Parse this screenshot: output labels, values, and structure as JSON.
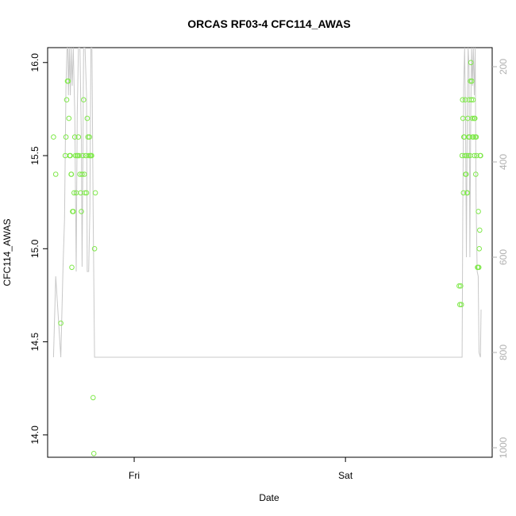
{
  "chart_data": {
    "type": "scatter",
    "title": "ORCAS RF03-4 CFC114_AWAS",
    "xlabel": "Date",
    "ylabel": "CFC114_AWAS",
    "xlim": [
      "2016-07-21T14:10",
      "2016-07-23T16:40"
    ],
    "ylim": [
      13.88,
      16.08
    ],
    "x_ticks": [
      {
        "value": "2016-07-22T00:00",
        "label": "Fri"
      },
      {
        "value": "2016-07-23T00:00",
        "label": "Sat"
      }
    ],
    "y_ticks": [
      14.0,
      14.5,
      15.0,
      15.5,
      16.0
    ],
    "y_tick_labels": [
      "14.0",
      "14.5",
      "15.0",
      "15.5",
      "16.0"
    ],
    "y2_lim": [
      1020,
      160
    ],
    "y2_ticks": [
      200,
      400,
      600,
      800,
      1000
    ],
    "y2_tick_labels": [
      "200",
      "400",
      "600",
      "800",
      "1000"
    ],
    "grid": false,
    "colors": {
      "points": "#7fe84a",
      "line": "#c8c8c8",
      "axis": "#000000",
      "right_axis": "#b0b0b0"
    },
    "series": [
      {
        "kind": "points",
        "axis": "left",
        "points": [
          [
            "2016-07-21T14:50",
            15.6
          ],
          [
            "2016-07-21T15:05",
            15.4
          ],
          [
            "2016-07-21T15:40",
            14.6
          ],
          [
            "2016-07-21T16:10",
            15.5
          ],
          [
            "2016-07-21T16:15",
            15.6
          ],
          [
            "2016-07-21T16:20",
            15.8
          ],
          [
            "2016-07-21T16:25",
            15.9
          ],
          [
            "2016-07-21T16:30",
            15.9
          ],
          [
            "2016-07-21T16:35",
            15.7
          ],
          [
            "2016-07-21T16:40",
            15.5
          ],
          [
            "2016-07-21T16:45",
            15.5
          ],
          [
            "2016-07-21T16:50",
            15.4
          ],
          [
            "2016-07-21T16:52",
            15.4
          ],
          [
            "2016-07-21T16:55",
            14.9
          ],
          [
            "2016-07-21T17:00",
            15.2
          ],
          [
            "2016-07-21T17:05",
            15.2
          ],
          [
            "2016-07-21T17:10",
            15.3
          ],
          [
            "2016-07-21T17:15",
            15.6
          ],
          [
            "2016-07-21T17:20",
            15.5
          ],
          [
            "2016-07-21T17:25",
            15.3
          ],
          [
            "2016-07-21T17:30",
            15.5
          ],
          [
            "2016-07-21T17:35",
            15.5
          ],
          [
            "2016-07-21T17:40",
            15.6
          ],
          [
            "2016-07-21T17:45",
            15.5
          ],
          [
            "2016-07-21T17:50",
            15.4
          ],
          [
            "2016-07-21T17:55",
            15.3
          ],
          [
            "2016-07-21T18:00",
            15.2
          ],
          [
            "2016-07-21T18:05",
            15.4
          ],
          [
            "2016-07-21T18:10",
            15.5
          ],
          [
            "2016-07-21T18:15",
            15.8
          ],
          [
            "2016-07-21T18:20",
            15.4
          ],
          [
            "2016-07-21T18:25",
            15.3
          ],
          [
            "2016-07-21T18:30",
            15.5
          ],
          [
            "2016-07-21T18:35",
            15.3
          ],
          [
            "2016-07-21T18:40",
            15.7
          ],
          [
            "2016-07-21T18:45",
            15.6
          ],
          [
            "2016-07-21T18:50",
            15.5
          ],
          [
            "2016-07-21T18:55",
            15.6
          ],
          [
            "2016-07-21T19:00",
            15.5
          ],
          [
            "2016-07-21T19:05",
            15.5
          ],
          [
            "2016-07-21T19:10",
            15.5
          ],
          [
            "2016-07-21T19:20",
            14.2
          ],
          [
            "2016-07-21T19:25",
            13.9
          ],
          [
            "2016-07-21T19:30",
            15.0
          ],
          [
            "2016-07-21T19:35",
            15.3
          ],
          [
            "2016-07-23T12:55",
            14.8
          ],
          [
            "2016-07-23T13:00",
            14.7
          ],
          [
            "2016-07-23T13:05",
            14.8
          ],
          [
            "2016-07-23T13:10",
            14.7
          ],
          [
            "2016-07-23T13:15",
            15.5
          ],
          [
            "2016-07-23T13:18",
            15.8
          ],
          [
            "2016-07-23T13:21",
            15.7
          ],
          [
            "2016-07-23T13:24",
            15.3
          ],
          [
            "2016-07-23T13:27",
            15.6
          ],
          [
            "2016-07-23T13:30",
            15.6
          ],
          [
            "2016-07-23T13:33",
            15.5
          ],
          [
            "2016-07-23T13:36",
            15.8
          ],
          [
            "2016-07-23T13:39",
            15.4
          ],
          [
            "2016-07-23T13:42",
            15.4
          ],
          [
            "2016-07-23T13:45",
            15.5
          ],
          [
            "2016-07-23T13:48",
            15.3
          ],
          [
            "2016-07-23T13:51",
            15.3
          ],
          [
            "2016-07-23T13:54",
            15.7
          ],
          [
            "2016-07-23T13:57",
            15.5
          ],
          [
            "2016-07-23T14:00",
            15.6
          ],
          [
            "2016-07-23T14:03",
            15.8
          ],
          [
            "2016-07-23T14:06",
            15.6
          ],
          [
            "2016-07-23T14:09",
            15.5
          ],
          [
            "2016-07-23T14:12",
            15.9
          ],
          [
            "2016-07-23T14:15",
            16.0
          ],
          [
            "2016-07-23T14:18",
            15.8
          ],
          [
            "2016-07-23T14:21",
            15.9
          ],
          [
            "2016-07-23T14:24",
            15.7
          ],
          [
            "2016-07-23T14:27",
            15.6
          ],
          [
            "2016-07-23T14:30",
            15.8
          ],
          [
            "2016-07-23T14:33",
            15.6
          ],
          [
            "2016-07-23T14:36",
            15.7
          ],
          [
            "2016-07-23T14:39",
            15.5
          ],
          [
            "2016-07-23T14:42",
            15.7
          ],
          [
            "2016-07-23T14:45",
            15.6
          ],
          [
            "2016-07-23T14:48",
            15.4
          ],
          [
            "2016-07-23T14:51",
            15.6
          ],
          [
            "2016-07-23T14:54",
            15.5
          ],
          [
            "2016-07-23T15:00",
            14.9
          ],
          [
            "2016-07-23T15:03",
            14.9
          ],
          [
            "2016-07-23T15:06",
            15.2
          ],
          [
            "2016-07-23T15:09",
            14.9
          ],
          [
            "2016-07-23T15:12",
            15.0
          ],
          [
            "2016-07-23T15:15",
            15.1
          ],
          [
            "2016-07-23T15:18",
            15.5
          ],
          [
            "2016-07-23T15:21",
            15.5
          ]
        ]
      },
      {
        "kind": "line",
        "axis": "right",
        "points": [
          [
            "2016-07-21T14:50",
            810
          ],
          [
            "2016-07-21T15:05",
            640
          ],
          [
            "2016-07-21T15:40",
            810
          ],
          [
            "2016-07-21T15:55",
            620
          ],
          [
            "2016-07-21T16:05",
            520
          ],
          [
            "2016-07-21T16:15",
            240
          ],
          [
            "2016-07-21T16:22",
            160
          ],
          [
            "2016-07-21T16:28",
            160
          ],
          [
            "2016-07-21T16:32",
            260
          ],
          [
            "2016-07-21T16:38",
            160
          ],
          [
            "2016-07-21T16:45",
            260
          ],
          [
            "2016-07-21T16:50",
            160
          ],
          [
            "2016-07-21T16:58",
            240
          ],
          [
            "2016-07-21T17:05",
            160
          ],
          [
            "2016-07-21T17:15",
            300
          ],
          [
            "2016-07-21T17:25",
            630
          ],
          [
            "2016-07-21T17:32",
            300
          ],
          [
            "2016-07-21T17:40",
            160
          ],
          [
            "2016-07-21T17:50",
            160
          ],
          [
            "2016-07-21T18:00",
            350
          ],
          [
            "2016-07-21T18:05",
            620
          ],
          [
            "2016-07-21T18:10",
            400
          ],
          [
            "2016-07-21T18:15",
            160
          ],
          [
            "2016-07-21T18:25",
            160
          ],
          [
            "2016-07-21T18:35",
            260
          ],
          [
            "2016-07-21T18:40",
            630
          ],
          [
            "2016-07-21T18:50",
            630
          ],
          [
            "2016-07-21T18:58",
            500
          ],
          [
            "2016-07-21T19:05",
            160
          ],
          [
            "2016-07-21T19:12",
            160
          ],
          [
            "2016-07-21T19:20",
            500
          ],
          [
            "2016-07-21T19:30",
            810
          ],
          [
            "2016-07-23T13:15",
            810
          ],
          [
            "2016-07-23T13:20",
            500
          ],
          [
            "2016-07-23T13:26",
            240
          ],
          [
            "2016-07-23T13:32",
            160
          ],
          [
            "2016-07-23T13:38",
            300
          ],
          [
            "2016-07-23T13:44",
            600
          ],
          [
            "2016-07-23T13:50",
            300
          ],
          [
            "2016-07-23T13:56",
            160
          ],
          [
            "2016-07-23T14:02",
            200
          ],
          [
            "2016-07-23T14:08",
            600
          ],
          [
            "2016-07-23T14:14",
            300
          ],
          [
            "2016-07-23T14:20",
            160
          ],
          [
            "2016-07-23T14:26",
            240
          ],
          [
            "2016-07-23T14:32",
            160
          ],
          [
            "2016-07-23T14:38",
            260
          ],
          [
            "2016-07-23T14:44",
            160
          ],
          [
            "2016-07-23T14:50",
            480
          ],
          [
            "2016-07-23T14:58",
            630
          ],
          [
            "2016-07-23T15:05",
            640
          ],
          [
            "2016-07-23T15:10",
            800
          ],
          [
            "2016-07-23T15:20",
            810
          ],
          [
            "2016-07-23T15:24",
            710
          ]
        ]
      }
    ]
  }
}
